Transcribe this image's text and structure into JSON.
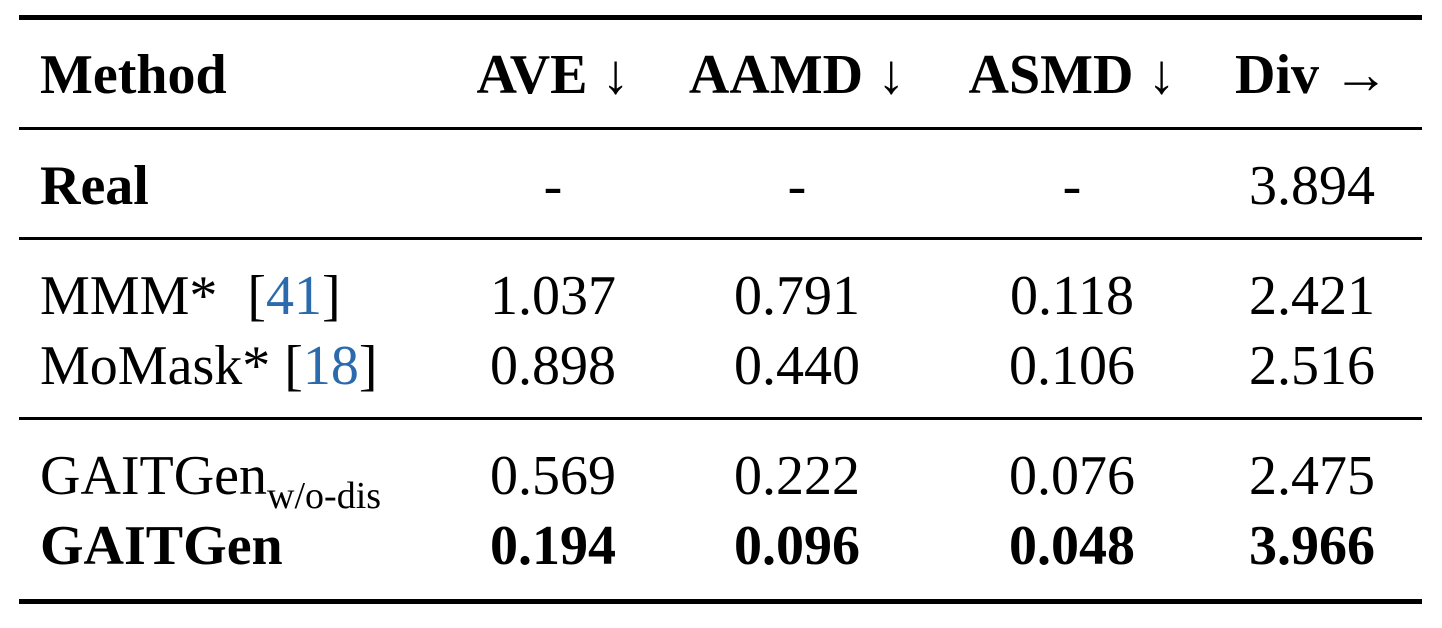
{
  "table": {
    "headers": {
      "method": "Method",
      "ave": "AVE ↓",
      "aamd": "AAMD ↓",
      "asmd": "ASMD ↓",
      "div": "Div →"
    },
    "rows": [
      {
        "method": "Real",
        "ave": "-",
        "aamd": "-",
        "asmd": "-",
        "div": "3.894"
      },
      {
        "method": "MMM*",
        "cite_open": "[",
        "cite_num": "41",
        "cite_close": "]",
        "ave": "1.037",
        "aamd": "0.791",
        "asmd": "0.118",
        "div": "2.421"
      },
      {
        "method": "MoMask*",
        "cite_open": "[",
        "cite_num": "18",
        "cite_close": "]",
        "ave": "0.898",
        "aamd": "0.440",
        "asmd": "0.106",
        "div": "2.516"
      },
      {
        "method": "GAITGen",
        "method_sub": "w/o-dis",
        "ave": "0.569",
        "aamd": "0.222",
        "asmd": "0.076",
        "div": "2.475"
      },
      {
        "method": "GAITGen",
        "ave": "0.194",
        "aamd": "0.096",
        "asmd": "0.048",
        "div": "3.966"
      }
    ],
    "colors": {
      "citation": "#2a6aad",
      "rules": "#000000"
    }
  }
}
